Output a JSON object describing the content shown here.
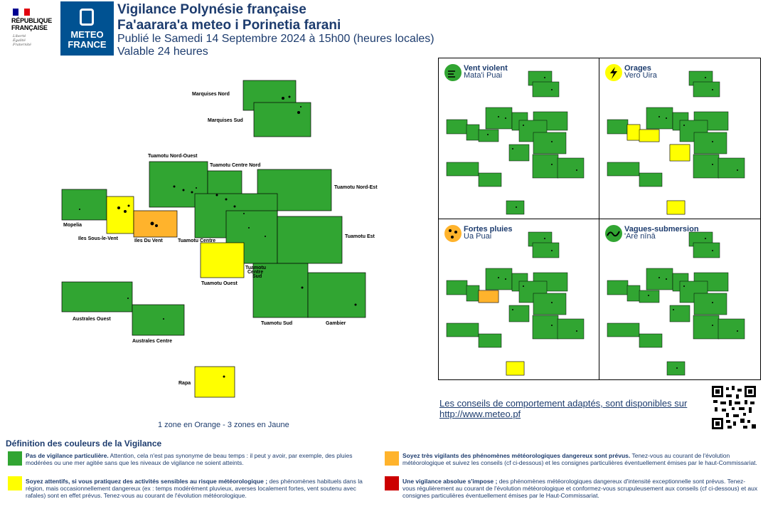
{
  "header": {
    "rf_lines": [
      "RÉPUBLIQUE",
      "FRANÇAISE"
    ],
    "rf_motto": [
      "Liberté",
      "Égalité",
      "Fraternité"
    ],
    "mf_lines": [
      "METEO",
      "FRANCE"
    ],
    "title1": "Vigilance Polynésie française",
    "title2": "Fa'aarara'a meteo i Porinetia farani",
    "published": "Publié le Samedi 14 Septembre 2024 à 15h00 (heures locales)",
    "validity": "Valable 24 heures"
  },
  "colors": {
    "green": "#31a532",
    "yellow": "#ffff00",
    "orange": "#ffb32c",
    "red": "#cc0000",
    "text": "#1d3c6e"
  },
  "map": {
    "zones": {
      "marquises_nord": "Marquises Nord",
      "marquises_sud": "Marquises Sud",
      "tuamotu_nord_ouest": "Tuamotu Nord-Ouest",
      "tuamotu_centre_nord": "Tuamotu Centre Nord",
      "tuamotu_nord_est": "Tuamotu Nord-Est",
      "mopelia": "Mopelia",
      "iles_sous_le_vent": "Iles Sous-le-Vent",
      "iles_du_vent": "Iles Du Vent",
      "tuamotu_centre": "Tuamotu Centre",
      "tuamotu_est": "Tuamotu Est",
      "tuamotu_ouest": "Tuamotu Ouest",
      "tuamotu_centre_sud_1": "Tuamotu",
      "tuamotu_centre_sud_2": "Centre",
      "tuamotu_centre_sud_3": "Sud",
      "australes_ouest": "Australes Ouest",
      "australes_centre": "Australes Centre",
      "tuamotu_sud": "Tuamotu Sud",
      "gambier": "Gambier",
      "rapa": "Rapa"
    },
    "levels": {
      "mopelia": "green",
      "iles_sous_le_vent": "yellow",
      "iles_du_vent": "orange",
      "tuamotu_ouest": "yellow",
      "rapa": "yellow"
    }
  },
  "panels": [
    {
      "title": "Vent violent",
      "subtitle": "Mata'i Puai",
      "icon": "wind-icon",
      "icon_color": "#31a532"
    },
    {
      "title": "Orages",
      "subtitle": "Vero Uira",
      "icon": "lightning-icon",
      "icon_color": "#ffff00"
    },
    {
      "title": "Fortes pluies",
      "subtitle": "Ua Puai",
      "icon": "rain-icon",
      "icon_color": "#ffb32c"
    },
    {
      "title": "Vagues-submersion",
      "subtitle": "'Are nīnā",
      "icon": "wave-icon",
      "icon_color": "#31a532"
    }
  ],
  "summary": "1 zone en Orange - 3 zones en Jaune",
  "advice": "Les conseils de comportement adaptés, sont disponibles sur http://www.meteo.pf",
  "legend": {
    "title": "Définition des couleurs de la Vigilance",
    "green": {
      "bold": "Pas de vigilance particulière.",
      "text": " Attention, cela n'est pas synonyme de beau temps : il peut y avoir, par exemple, des pluies modérées ou une mer agitée sans que les niveaux de vigilance ne soient atteints."
    },
    "yellow": {
      "bold": "Soyez attentifs, si vous pratiquez des activités sensibles au risque météorologique ;",
      "text": " des phénomènes habituels dans la région, mais occasionnellement dangereux (ex : temps modérément pluvieux, averses localement fortes, vent soutenu avec rafales) sont en effet prévus. Tenez-vous au courant de l'évolution météorologique."
    },
    "orange": {
      "bold": "Soyez très vigilants des phénomènes météorologiques dangereux sont prévus.",
      "text": " Tenez-vous au courant de l'évolution météorologique et suivez les conseils (cf ci-dessous) et les consignes particulières éventuellement émises par le haut-Commissariat."
    },
    "red": {
      "bold": "Une vigilance absolue s'impose ;",
      "text": " des phénomènes météorologiques dangereux d'intensité exceptionnelle sont prévus. Tenez-vous régulièrement au courant de l'évolution météorologique et conformez-vous scrupuleusement aux conseils (cf ci-dessous) et aux consignes particulières éventuellement émises par le Haut-Commissariat."
    }
  }
}
